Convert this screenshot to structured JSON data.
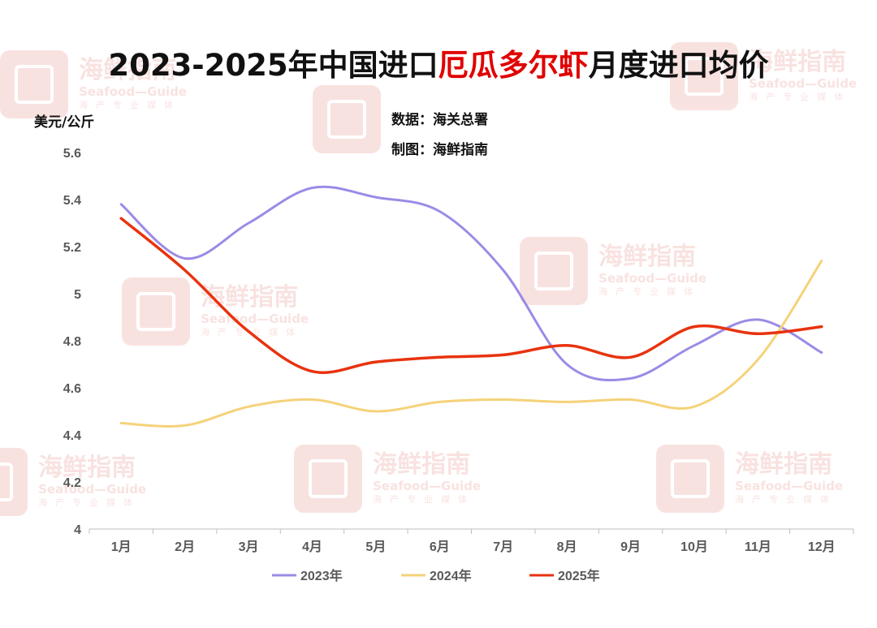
{
  "title": {
    "part1": "2023-2025年中国进口",
    "highlight": "厄瓜多尔虾",
    "part2": "月度进口均价"
  },
  "source_line": "数据：海关总署",
  "maker_line": "制图：海鲜指南",
  "watermark": {
    "brand": "海鲜指南",
    "sub": "Seafood—Guide",
    "tagline": "海产专业媒体"
  },
  "colors": {
    "title_highlight": "#e00000",
    "series_2023": "#9b8be6",
    "series_2024": "#f5d27a",
    "series_2025": "#e8330f"
  },
  "chart_data": {
    "type": "line",
    "title": "2023-2025年中国进口厄瓜多尔虾月度进口均价",
    "ylabel": "美元/公斤",
    "xlabel": "",
    "ylim": [
      4,
      5.6
    ],
    "yticks": [
      "4",
      "4.2",
      "4.4",
      "4.6",
      "4.8",
      "5",
      "5.2",
      "5.4",
      "5.6"
    ],
    "categories": [
      "1月",
      "2月",
      "3月",
      "4月",
      "5月",
      "6月",
      "7月",
      "8月",
      "9月",
      "10月",
      "11月",
      "12月"
    ],
    "series": [
      {
        "name": "2023年",
        "values": [
          5.38,
          5.15,
          5.3,
          5.45,
          5.41,
          5.35,
          5.1,
          4.7,
          4.64,
          4.78,
          4.89,
          4.75
        ]
      },
      {
        "name": "2024年",
        "values": [
          4.45,
          4.44,
          4.52,
          4.55,
          4.5,
          4.54,
          4.55,
          4.54,
          4.55,
          4.52,
          4.72,
          5.14
        ]
      },
      {
        "name": "2025年",
        "values": [
          5.32,
          5.1,
          4.84,
          4.67,
          4.71,
          4.73,
          4.74,
          4.78,
          4.73,
          4.86,
          4.83,
          4.86
        ]
      }
    ],
    "legend_position": "bottom",
    "grid": false
  }
}
